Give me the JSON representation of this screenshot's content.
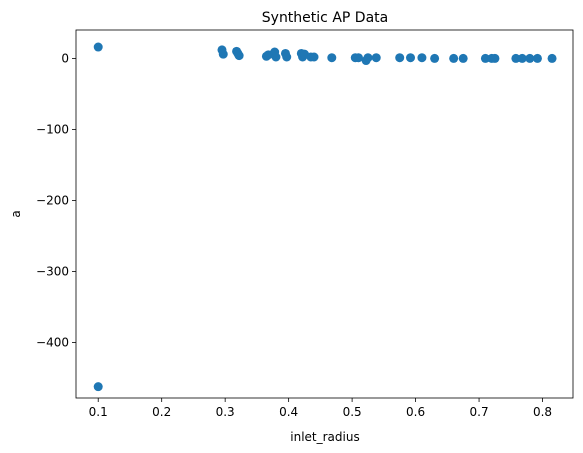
{
  "chart_data": {
    "type": "scatter",
    "title": "Synthetic AP Data",
    "xlabel": "inlet_radius",
    "ylabel": "a",
    "xlim": [
      0.065,
      0.848
    ],
    "ylim": [
      -478,
      40
    ],
    "xticks": [
      0.1,
      0.2,
      0.3,
      0.4,
      0.5,
      0.6,
      0.7,
      0.8
    ],
    "xtick_labels": [
      "0.1",
      "0.2",
      "0.3",
      "0.4",
      "0.5",
      "0.6",
      "0.7",
      "0.8"
    ],
    "yticks": [
      0,
      -100,
      -200,
      -300,
      -400
    ],
    "ytick_labels": [
      "0",
      "−100",
      "−200",
      "−300",
      "−400"
    ],
    "grid": false,
    "marker_color": "#1f77b4",
    "series": [
      {
        "name": "points",
        "x": [
          0.1,
          0.1,
          0.295,
          0.297,
          0.318,
          0.32,
          0.322,
          0.365,
          0.368,
          0.378,
          0.38,
          0.395,
          0.397,
          0.42,
          0.422,
          0.425,
          0.435,
          0.44,
          0.468,
          0.505,
          0.51,
          0.522,
          0.525,
          0.538,
          0.575,
          0.592,
          0.61,
          0.63,
          0.66,
          0.675,
          0.71,
          0.72,
          0.725,
          0.758,
          0.768,
          0.78,
          0.792,
          0.815
        ],
        "y": [
          16,
          -462,
          12,
          6,
          10,
          7,
          4,
          3,
          5,
          9,
          2,
          7,
          2,
          7,
          2,
          6,
          2,
          2,
          1,
          1,
          1,
          -3,
          1,
          1,
          1,
          1,
          1,
          0,
          0,
          0,
          0,
          0,
          0,
          0,
          0,
          0,
          0,
          0
        ]
      }
    ]
  }
}
